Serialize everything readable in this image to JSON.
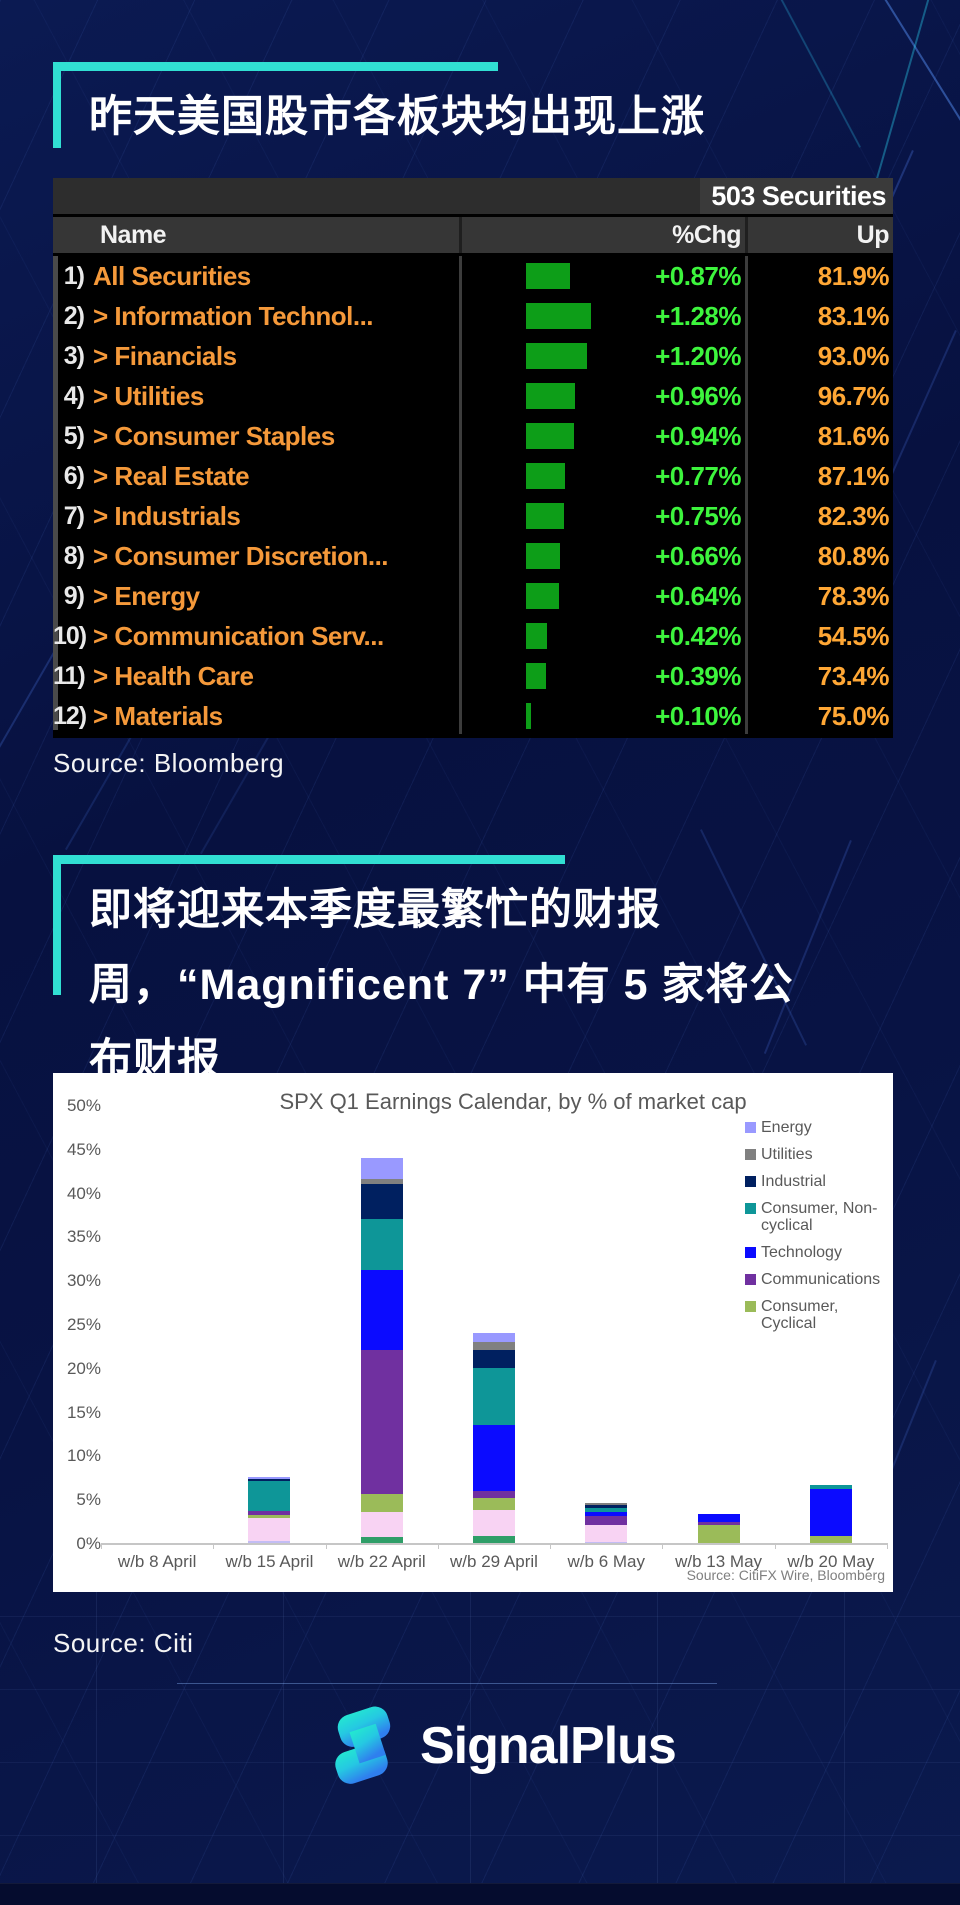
{
  "page": {
    "accent_color": "#31DFD3",
    "background": "#081243"
  },
  "section1": {
    "title": "昨天美国股市各板块均出现上涨",
    "source": "Source: Bloomberg",
    "table": {
      "count_label": "503 Securities",
      "columns": {
        "name": "Name",
        "chg": "%Chg",
        "up": "Up"
      },
      "colors": {
        "name_orange": "#F5993A",
        "chg_green": "#3DF53D",
        "bar_green": "#0D9E18",
        "up_orange": "#FFA735"
      },
      "rows": [
        {
          "num": "1)",
          "chevron": false,
          "name": "All Securities",
          "chg": "+0.87%",
          "chg_val": 0.87,
          "up": "81.9%"
        },
        {
          "num": "2)",
          "chevron": true,
          "name": "Information Technol...",
          "chg": "+1.28%",
          "chg_val": 1.28,
          "up": "83.1%"
        },
        {
          "num": "3)",
          "chevron": true,
          "name": "Financials",
          "chg": "+1.20%",
          "chg_val": 1.2,
          "up": "93.0%"
        },
        {
          "num": "4)",
          "chevron": true,
          "name": "Utilities",
          "chg": "+0.96%",
          "chg_val": 0.96,
          "up": "96.7%"
        },
        {
          "num": "5)",
          "chevron": true,
          "name": "Consumer Staples",
          "chg": "+0.94%",
          "chg_val": 0.94,
          "up": "81.6%"
        },
        {
          "num": "6)",
          "chevron": true,
          "name": "Real Estate",
          "chg": "+0.77%",
          "chg_val": 0.77,
          "up": "87.1%"
        },
        {
          "num": "7)",
          "chevron": true,
          "name": "Industrials",
          "chg": "+0.75%",
          "chg_val": 0.75,
          "up": "82.3%"
        },
        {
          "num": "8)",
          "chevron": true,
          "name": "Consumer Discretion...",
          "chg": "+0.66%",
          "chg_val": 0.66,
          "up": "80.8%"
        },
        {
          "num": "9)",
          "chevron": true,
          "name": "Energy",
          "chg": "+0.64%",
          "chg_val": 0.64,
          "up": "78.3%"
        },
        {
          "num": "10)",
          "chevron": true,
          "name": "Communication Serv...",
          "chg": "+0.42%",
          "chg_val": 0.42,
          "up": "54.5%"
        },
        {
          "num": "11)",
          "chevron": true,
          "name": "Health Care",
          "chg": "+0.39%",
          "chg_val": 0.39,
          "up": "73.4%"
        },
        {
          "num": "12)",
          "chevron": true,
          "name": "Materials",
          "chg": "+0.10%",
          "chg_val": 0.1,
          "up": "75.0%"
        }
      ]
    }
  },
  "section2": {
    "title_lines": [
      "即将迎来本季度最繁忙的财报",
      "周，“Magnificent 7” 中有 5 家将公",
      "布财报"
    ],
    "source": "Source: Citi"
  },
  "chart_data": {
    "type": "bar",
    "stacked": true,
    "title": "SPX Q1 Earnings Calendar, by % of market cap",
    "xlabel": "",
    "ylabel": "",
    "ylim": [
      0,
      50
    ],
    "yticks": [
      0,
      5,
      10,
      15,
      20,
      25,
      30,
      35,
      40,
      45,
      50
    ],
    "grid": false,
    "legend_position": "right",
    "source_note": "Source: CitiFX Wire, Bloomberg",
    "categories": [
      "w/b 8 April",
      "w/b 15 April",
      "w/b 22 April",
      "w/b 29 April",
      "w/b 6 May",
      "w/b 13 May",
      "w/b 20 May"
    ],
    "legend": [
      {
        "label": "Energy",
        "color": "#9999FF"
      },
      {
        "label": "Utilities",
        "color": "#808080"
      },
      {
        "label": "Industrial",
        "color": "#002060"
      },
      {
        "label": "Consumer, Non-cyclical",
        "color": "#0E9698"
      },
      {
        "label": "Technology",
        "color": "#0B0BFF"
      },
      {
        "label": "Communications",
        "color": "#7030A0"
      },
      {
        "label": "Consumer, Cyclical",
        "color": "#9BBB59"
      }
    ],
    "series": [
      {
        "name": "Other (green)",
        "color": "#2F9E68",
        "values": [
          0,
          0,
          0.7,
          0.8,
          0,
          0,
          0
        ]
      },
      {
        "name": "Other (lavender)",
        "color": "#C3BDF4",
        "values": [
          0,
          0.2,
          0,
          0,
          0.15,
          0,
          0
        ]
      },
      {
        "name": "Other (pink)",
        "color": "#F8D3F3",
        "values": [
          0,
          2.7,
          2.8,
          3.0,
          1.95,
          0,
          0
        ]
      },
      {
        "name": "Consumer, Cyclical",
        "color": "#9BBB59",
        "values": [
          0,
          0.3,
          2.1,
          1.3,
          0,
          2.1,
          0.8
        ]
      },
      {
        "name": "Communications",
        "color": "#7030A0",
        "values": [
          0,
          0.4,
          16.4,
          0.8,
          1.0,
          0.35,
          0
        ]
      },
      {
        "name": "Technology",
        "color": "#0B0BFF",
        "values": [
          0,
          0,
          9.2,
          7.6,
          0.4,
          0.85,
          5.4
        ]
      },
      {
        "name": "Consumer, Non-cyclical",
        "color": "#0E9698",
        "values": [
          0,
          3.5,
          5.8,
          6.5,
          0.45,
          0,
          0.4
        ]
      },
      {
        "name": "Industrial",
        "color": "#002060",
        "values": [
          0,
          0.25,
          4.0,
          2.0,
          0.45,
          0,
          0
        ]
      },
      {
        "name": "Utilities",
        "color": "#808080",
        "values": [
          0,
          0,
          0.6,
          1.0,
          0.2,
          0,
          0
        ]
      },
      {
        "name": "Energy",
        "color": "#9999FF",
        "values": [
          0,
          0.15,
          2.4,
          1.0,
          0,
          0,
          0
        ]
      }
    ]
  },
  "footer": {
    "brand": "SignalPlus"
  }
}
